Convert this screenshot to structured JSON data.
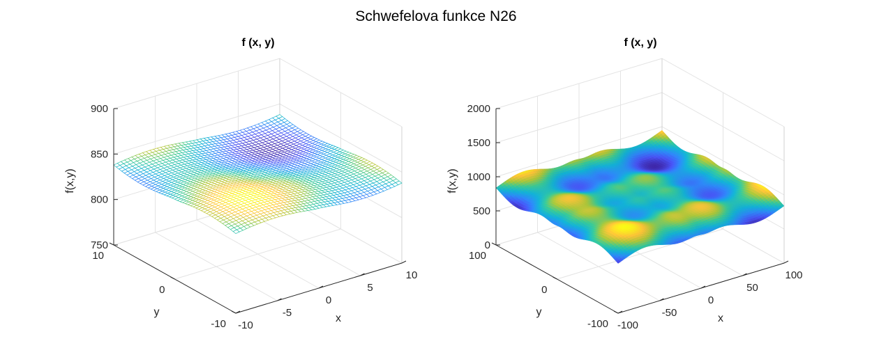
{
  "figure": {
    "title": "Schwefelova funkce N26"
  },
  "chart_data": [
    {
      "type": "surface",
      "title": "f (x, y)",
      "xlabel": "x",
      "ylabel": "y",
      "zlabel": "f(x,y)",
      "xlim": [
        -10,
        10
      ],
      "ylim": [
        -10,
        10
      ],
      "zlim": [
        750,
        900
      ],
      "xticks": [
        "-10",
        "-5",
        "0",
        "5",
        "10"
      ],
      "yticks": [
        "-10",
        "0",
        "10"
      ],
      "zticks": [
        "750",
        "800",
        "850",
        "900"
      ],
      "function": "418.9829*2 - x*sin(sqrt(|x|)) - y*sin(sqrt(|y|))",
      "render": "mesh",
      "colormap": "parula",
      "grid": true
    },
    {
      "type": "surface",
      "title": "f (x, y)",
      "xlabel": "x",
      "ylabel": "y",
      "zlabel": "f(x,y)",
      "xlim": [
        -100,
        100
      ],
      "ylim": [
        -100,
        100
      ],
      "zlim": [
        0,
        2000
      ],
      "xticks": [
        "-100",
        "-50",
        "0",
        "50",
        "100"
      ],
      "yticks": [
        "-100",
        "0",
        "100"
      ],
      "zticks": [
        "0",
        "500",
        "1000",
        "1500",
        "2000"
      ],
      "function": "418.9829*2 - x*sin(sqrt(|x|)) - y*sin(sqrt(|y|))",
      "render": "shaded",
      "colormap": "parula",
      "grid": true
    }
  ]
}
